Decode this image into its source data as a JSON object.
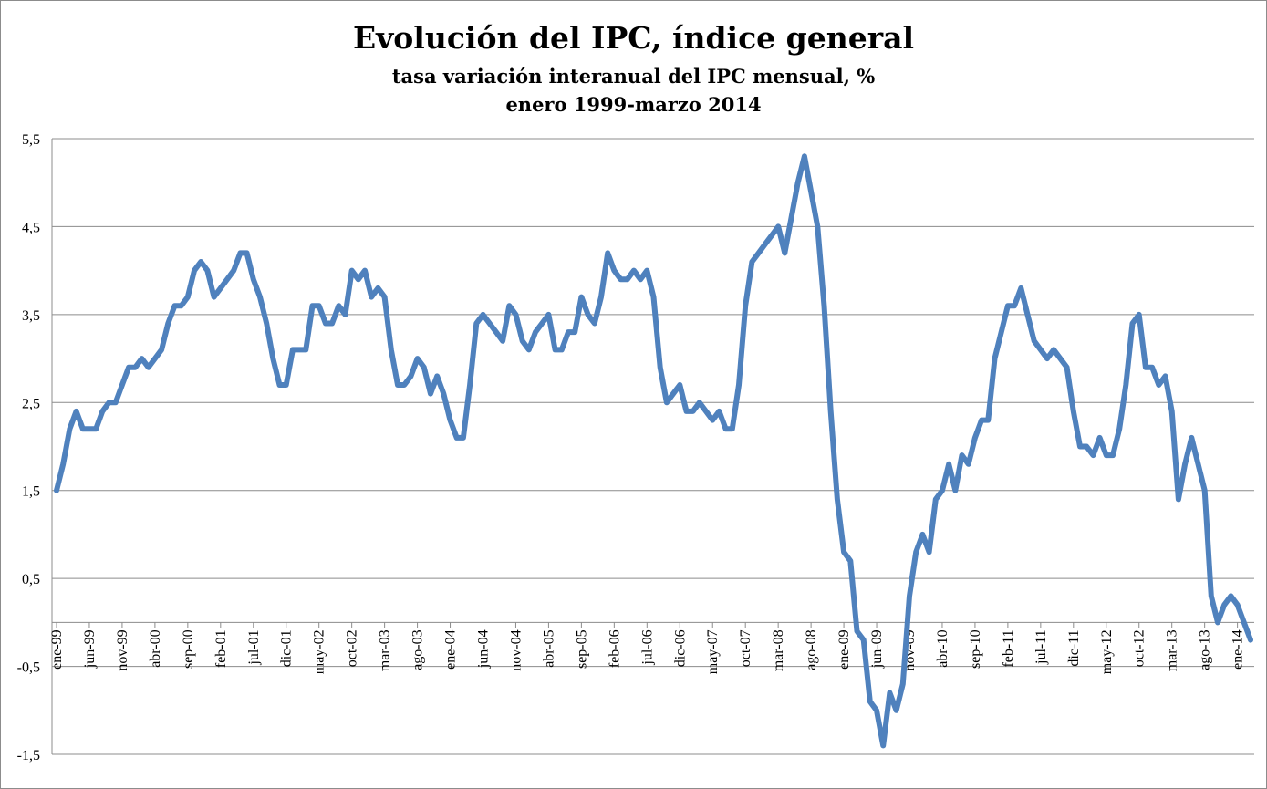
{
  "chart_data": {
    "type": "line",
    "title": "Evolución del IPC, índice general",
    "subtitle": "tasa variación interanual del IPC mensual, %",
    "period": "enero 1999-marzo 2014",
    "xlabel": "",
    "ylabel": "",
    "ylim": [
      -1.5,
      5.5
    ],
    "ytick_values": [
      -1.5,
      -0.5,
      0.5,
      1.5,
      2.5,
      3.5,
      4.5,
      5.5
    ],
    "ytick_labels": [
      "-1,5",
      "-0,5",
      "0,5",
      "1,5",
      "2,5",
      "3,5",
      "4,5",
      "5,5"
    ],
    "grid": true,
    "legend": "none",
    "line_color": "#4F81BD",
    "x_start": "1999-01",
    "x_end": "2014-03",
    "xtick_labels": [
      "ene-99",
      "jun-99",
      "nov-99",
      "abr-00",
      "sep-00",
      "feb-01",
      "jul-01",
      "dic-01",
      "may-02",
      "oct-02",
      "mar-03",
      "ago-03",
      "ene-04",
      "jun-04",
      "nov-04",
      "abr-05",
      "sep-05",
      "feb-06",
      "jul-06",
      "dic-06",
      "may-07",
      "oct-07",
      "mar-08",
      "ago-08",
      "ene-09",
      "jun-09",
      "nov-09",
      "abr-10",
      "sep-10",
      "feb-11",
      "jul-11",
      "dic-11",
      "may-12",
      "oct-12",
      "mar-13",
      "ago-13",
      "ene-14"
    ],
    "series": [
      {
        "values": [
          1.5,
          1.8,
          2.2,
          2.4,
          2.2,
          2.2,
          2.2,
          2.4,
          2.5,
          2.5,
          2.7,
          2.9,
          2.9,
          3.0,
          2.9,
          3.0,
          3.1,
          3.4,
          3.6,
          3.6,
          3.7,
          4.0,
          4.1,
          4.0,
          3.7,
          3.8,
          3.9,
          4.0,
          4.2,
          4.2,
          3.9,
          3.7,
          3.4,
          3.0,
          2.7,
          2.7,
          3.1,
          3.1,
          3.1,
          3.6,
          3.6,
          3.4,
          3.4,
          3.6,
          3.5,
          4.0,
          3.9,
          4.0,
          3.7,
          3.8,
          3.7,
          3.1,
          2.7,
          2.7,
          2.8,
          3.0,
          2.9,
          2.6,
          2.8,
          2.6,
          2.3,
          2.1,
          2.1,
          2.7,
          3.4,
          3.5,
          3.4,
          3.3,
          3.2,
          3.6,
          3.5,
          3.2,
          3.1,
          3.3,
          3.4,
          3.5,
          3.1,
          3.1,
          3.3,
          3.3,
          3.7,
          3.5,
          3.4,
          3.7,
          4.2,
          4.0,
          3.9,
          3.9,
          4.0,
          3.9,
          4.0,
          3.7,
          2.9,
          2.5,
          2.6,
          2.7,
          2.4,
          2.4,
          2.5,
          2.4,
          2.3,
          2.4,
          2.2,
          2.2,
          2.7,
          3.6,
          4.1,
          4.2,
          4.3,
          4.4,
          4.5,
          4.2,
          4.6,
          5.0,
          5.3,
          4.9,
          4.5,
          3.6,
          2.4,
          1.4,
          0.8,
          0.7,
          -0.1,
          -0.2,
          -0.9,
          -1.0,
          -1.4,
          -0.8,
          -1.0,
          -0.7,
          0.3,
          0.8,
          1.0,
          0.8,
          1.4,
          1.5,
          1.8,
          1.5,
          1.9,
          1.8,
          2.1,
          2.3,
          2.3,
          3.0,
          3.3,
          3.6,
          3.6,
          3.8,
          3.5,
          3.2,
          3.1,
          3.0,
          3.1,
          3.0,
          2.9,
          2.4,
          2.0,
          2.0,
          1.9,
          2.1,
          1.9,
          1.9,
          2.2,
          2.7,
          3.4,
          3.5,
          2.9,
          2.9,
          2.7,
          2.8,
          2.4,
          1.4,
          1.8,
          2.1,
          1.8,
          1.5,
          0.3,
          0.0,
          0.2,
          0.3,
          0.2,
          0.0,
          -0.2
        ]
      }
    ]
  }
}
